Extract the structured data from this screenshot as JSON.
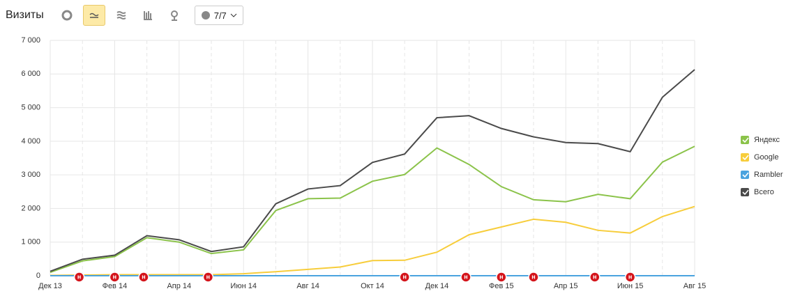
{
  "header": {
    "title": "Визиты",
    "segments_button": "7/7"
  },
  "chart_data": {
    "type": "line",
    "categories": [
      "Дек 13",
      null,
      "Фев 14",
      null,
      "Апр 14",
      null,
      "Июн 14",
      null,
      "Авг 14",
      null,
      "Окт 14",
      null,
      "Дек 14",
      null,
      "Фев 15",
      null,
      "Апр 15",
      null,
      "Июн 15",
      null,
      "Авг 15"
    ],
    "series": [
      {
        "name": "Яндекс",
        "color": "#8bc34a",
        "values": [
          100,
          440,
          570,
          1130,
          1000,
          660,
          770,
          1940,
          2290,
          2310,
          2810,
          3010,
          3800,
          3310,
          2650,
          2260,
          2200,
          2420,
          2290,
          3380,
          3850
        ]
      },
      {
        "name": "Google",
        "color": "#f7cd3b",
        "values": [
          10,
          20,
          30,
          30,
          30,
          30,
          60,
          120,
          190,
          260,
          450,
          460,
          700,
          1220,
          1450,
          1680,
          1590,
          1350,
          1270,
          1760,
          2060
        ]
      },
      {
        "name": "Rambler",
        "color": "#4aa3df",
        "values": [
          0,
          0,
          0,
          0,
          0,
          0,
          0,
          0,
          0,
          0,
          0,
          0,
          0,
          0,
          0,
          0,
          0,
          0,
          0,
          0,
          0
        ]
      },
      {
        "name": "Всего",
        "color": "#4a4a4a",
        "values": [
          130,
          490,
          610,
          1190,
          1070,
          720,
          860,
          2140,
          2580,
          2680,
          3370,
          3620,
          4700,
          4760,
          4380,
          4130,
          3960,
          3930,
          3690,
          5310,
          6130
        ]
      }
    ],
    "ylim": [
      0,
      7000
    ],
    "yticks": [
      0,
      {
        "value": 1000,
        "label": "1 000"
      },
      {
        "value": 2000,
        "label": "2 000"
      },
      {
        "value": 3000,
        "label": "3 000"
      },
      {
        "value": 4000,
        "label": "4 000"
      },
      {
        "value": 5000,
        "label": "5 000"
      },
      {
        "value": 6000,
        "label": "6 000"
      },
      {
        "value": 7000,
        "label": "7 000"
      }
    ],
    "grid": true,
    "legend": "right",
    "event_label": "н",
    "events": [
      0.9,
      2,
      2.9,
      4.9,
      11,
      12.9,
      14,
      15,
      16.9,
      18
    ]
  }
}
